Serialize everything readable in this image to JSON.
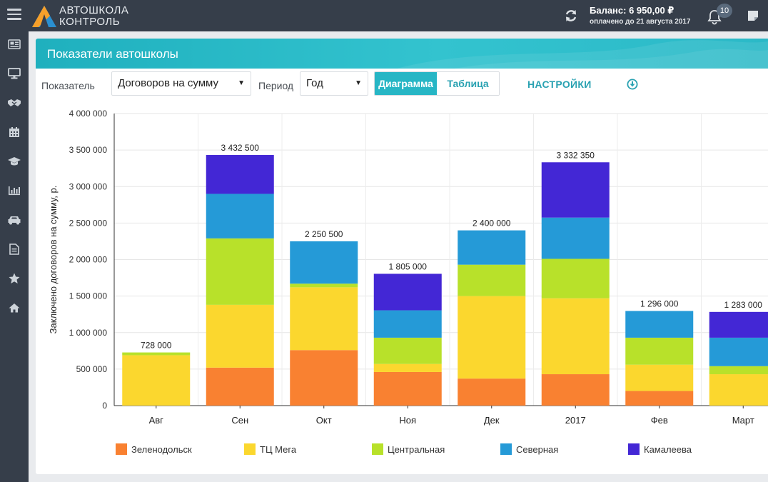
{
  "app": {
    "logo_line1": "АВТОШКОЛА",
    "logo_line2": "КОНТРОЛЬ",
    "balance": "Баланс: 6 950,00 ₽",
    "paid_until": "оплачено до 21 августа 2017",
    "notification_count": "10"
  },
  "sidebar": {
    "items": [
      {
        "icon": "news-icon"
      },
      {
        "icon": "monitor-icon"
      },
      {
        "icon": "handshake-icon"
      },
      {
        "icon": "calendar-icon"
      },
      {
        "icon": "graduation-cap-icon"
      },
      {
        "icon": "bar-chart-icon"
      },
      {
        "icon": "car-icon"
      },
      {
        "icon": "document-icon"
      },
      {
        "icon": "star-icon"
      },
      {
        "icon": "home-icon"
      }
    ]
  },
  "panel": {
    "title": "Показатели автошколы",
    "indicator_label": "Показатель",
    "indicator_value": "Договоров на сумму",
    "period_label": "Период",
    "period_value": "Год",
    "view_chart": "Диаграмма",
    "view_table": "Таблица",
    "settings": "НАСТРОЙКИ"
  },
  "colors": {
    "accent": "#27b6c5",
    "sidebar": "#363e4a"
  },
  "chart_data": {
    "type": "bar",
    "stacked": true,
    "ylabel": "Заключено договоров на сумму, р.",
    "ylim": [
      0,
      4000000
    ],
    "y_ticks": [
      0,
      500000,
      1000000,
      1500000,
      2000000,
      2500000,
      3000000,
      3500000,
      4000000
    ],
    "y_tick_labels": [
      "0",
      "500 000",
      "1 000 000",
      "1 500 000",
      "2 000 000",
      "2 500 000",
      "3 000 000",
      "3 500 000",
      "4 000 000"
    ],
    "grid": true,
    "legend_position": "bottom",
    "categories": [
      "Авг",
      "Сен",
      "Окт",
      "Ноя",
      "Дек",
      "2017",
      "Фев",
      "Март"
    ],
    "totals": [
      "728 000",
      "3 432 500",
      "2 250 500",
      "1 805 000",
      "2 400 000",
      "3 332 350",
      "1 296 000",
      "1 283 000"
    ],
    "series": [
      {
        "name": "Зеленодольск",
        "color": "#f98131",
        "values": [
          0,
          520000,
          760000,
          460000,
          370000,
          430000,
          200000,
          0
        ]
      },
      {
        "name": "ТЦ Мега",
        "color": "#fbd72e",
        "values": [
          690000,
          860000,
          860000,
          110000,
          1130000,
          1040000,
          360000,
          430000
        ]
      },
      {
        "name": "Центральная",
        "color": "#b8e12a",
        "values": [
          38000,
          910000,
          50000,
          360000,
          430000,
          540000,
          370000,
          110000
        ]
      },
      {
        "name": "Северная",
        "color": "#259ad7",
        "values": [
          0,
          610000,
          580500,
          375000,
          470000,
          565000,
          366000,
          390000
        ]
      },
      {
        "name": "Камалеева",
        "color": "#4327d5",
        "values": [
          0,
          532500,
          0,
          500000,
          0,
          757350,
          0,
          353000
        ]
      }
    ]
  }
}
